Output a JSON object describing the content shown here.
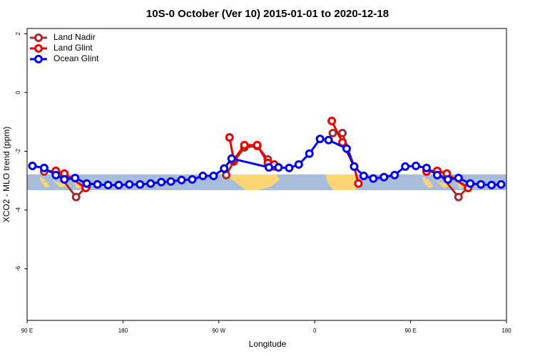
{
  "chart_data": {
    "type": "line",
    "title": "10S-0 October (Ver 10)   2015-01-01 to 2020-12-18",
    "x_label": "Longitude",
    "y_label": "XCO2 - MLO trend (ppm)",
    "xlim": [
      90,
      540
    ],
    "ylim": [
      -7.76,
      2.18
    ],
    "xticks": [
      {
        "value": 90,
        "label": "90 E"
      },
      180,
      {
        "value": 270,
        "label": "90 W"
      },
      {
        "value": 360,
        "label": "0"
      },
      {
        "value": 450,
        "label": "90 E"
      },
      {
        "value": 540,
        "label": "180"
      }
    ],
    "yticks": [
      2,
      0,
      -2,
      -4,
      -6
    ],
    "legend": "top-left",
    "series": [
      {
        "name": "Land Nadir",
        "color": "#a52a2a",
        "x": [
          106,
          117,
          136,
          146,
          null,
          277,
          284,
          294,
          306,
          316,
          322,
          null,
          377,
          386,
          397,
          null,
          465,
          475,
          495,
          504
        ],
        "values": [
          -2.69,
          -2.67,
          -3.56,
          -3.2,
          null,
          -2.81,
          -2.35,
          -1.87,
          -1.82,
          -2.28,
          -2.52,
          null,
          -1.38,
          -1.38,
          -2.52,
          null,
          -2.67,
          -2.67,
          -3.56,
          -3.22
        ]
      },
      {
        "name": "Land Glint",
        "color": "#ee0000",
        "x": [
          117,
          125,
          145,
          null,
          280,
          284,
          294,
          306,
          316,
          322,
          null,
          376,
          386,
          397,
          401,
          null,
          465,
          475,
          484,
          504
        ],
        "values": [
          -2.67,
          -2.76,
          -3.25,
          null,
          -1.53,
          -2.3,
          -1.79,
          -1.79,
          -2.4,
          -2.45,
          null,
          -0.97,
          -1.7,
          -2.52,
          -3.1,
          null,
          -2.69,
          -2.67,
          -2.76,
          -3.25
        ]
      },
      {
        "name": "Ocean Glint",
        "color": "#0000ee",
        "x": [
          95,
          106,
          117,
          125,
          135,
          146,
          156,
          166,
          176,
          186,
          196,
          206,
          216,
          225,
          235,
          245,
          255,
          265,
          275,
          282,
          317,
          326,
          336,
          345,
          355,
          365,
          373,
          390,
          397,
          406,
          415,
          425,
          435,
          445,
          455,
          465,
          475,
          485,
          495,
          506,
          516,
          526,
          535
        ],
        "values": [
          -2.5,
          -2.57,
          -2.81,
          -2.96,
          -2.91,
          -3.1,
          -3.13,
          -3.15,
          -3.15,
          -3.13,
          -3.13,
          -3.1,
          -3.05,
          -3.03,
          -2.98,
          -2.96,
          -2.84,
          -2.84,
          -2.59,
          -2.25,
          -2.55,
          -2.55,
          -2.57,
          -2.45,
          -2.08,
          -1.58,
          -1.62,
          -1.91,
          -2.52,
          -2.84,
          -2.93,
          -2.88,
          -2.81,
          -2.52,
          -2.5,
          -2.57,
          -2.81,
          -2.96,
          -2.91,
          -3.1,
          -3.13,
          -3.15,
          -3.13
        ]
      }
    ]
  }
}
